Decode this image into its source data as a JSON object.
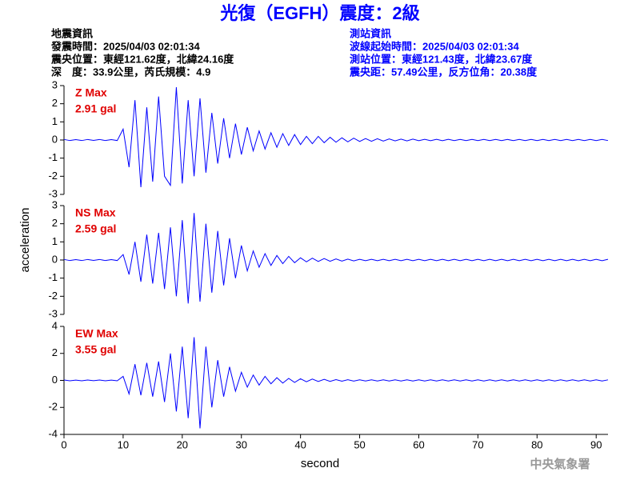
{
  "header": {
    "title": "光復（EGFH）震度：2級",
    "left": [
      "地震資訊",
      "發震時間：2025/04/03 02:01:34",
      "震央位置：東經121.62度，北緯24.16度",
      "深　度：33.9公里，芮氏規模：4.9"
    ],
    "right": [
      "測站資訊",
      "波線起始時間：2025/04/03 02:01:34",
      "測站位置：東經121.43度，北緯23.67度",
      "震央距：57.49公里，反方位角：20.38度"
    ]
  },
  "footer": "中央氣象署",
  "chart_data": [
    {
      "type": "line",
      "annotations": [
        "Z Max",
        "2.91 gal"
      ],
      "color": "#0000ff",
      "xlim": [
        0,
        92
      ],
      "ylim": [
        -3,
        3
      ],
      "yticks": [
        3,
        2,
        1,
        0,
        -1,
        -2,
        -3
      ],
      "x": [
        0,
        1,
        2,
        3,
        4,
        5,
        6,
        7,
        8,
        9,
        10,
        11,
        12,
        13,
        14,
        15,
        16,
        17,
        18,
        19,
        20,
        21,
        22,
        23,
        24,
        25,
        26,
        27,
        28,
        29,
        30,
        31,
        32,
        33,
        34,
        35,
        36,
        37,
        38,
        39,
        40,
        41,
        42,
        43,
        44,
        45,
        46,
        47,
        48,
        49,
        50,
        51,
        52,
        53,
        54,
        55,
        56,
        57,
        58,
        59,
        60,
        61,
        62,
        63,
        64,
        65,
        66,
        67,
        68,
        69,
        70,
        71,
        72,
        73,
        74,
        75,
        76,
        77,
        78,
        79,
        80,
        81,
        82,
        83,
        84,
        85,
        86,
        87,
        88,
        89,
        90,
        91,
        92
      ],
      "values": [
        0.03,
        -0.03,
        0.02,
        -0.03,
        0.03,
        -0.02,
        0.03,
        -0.03,
        0.02,
        -0.03,
        0.6,
        -1.5,
        2.2,
        -2.6,
        1.8,
        -2.3,
        2.4,
        -2.0,
        -2.5,
        2.91,
        -2.4,
        2.2,
        -2.0,
        2.3,
        -1.8,
        1.5,
        -1.3,
        1.2,
        -1.0,
        0.9,
        -0.8,
        0.7,
        -0.6,
        0.5,
        -0.5,
        0.4,
        -0.4,
        0.35,
        -0.3,
        0.3,
        -0.25,
        0.2,
        -0.2,
        0.2,
        -0.15,
        0.15,
        -0.12,
        0.12,
        -0.1,
        0.1,
        -0.08,
        0.08,
        -0.07,
        0.07,
        -0.06,
        0.06,
        -0.05,
        0.05,
        -0.05,
        0.05,
        -0.04,
        0.04,
        -0.04,
        0.04,
        -0.04,
        0.04,
        -0.03,
        0.03,
        -0.03,
        0.03,
        -0.03,
        0.03,
        -0.03,
        0.03,
        -0.03,
        0.03,
        -0.03,
        0.03,
        -0.03,
        0.03,
        -0.03,
        0.03,
        -0.03,
        0.03,
        -0.03,
        0.03,
        -0.03,
        0.03,
        -0.03,
        0.03,
        -0.03,
        0.03,
        -0.03
      ]
    },
    {
      "type": "line",
      "annotations": [
        "NS Max",
        "2.59 gal"
      ],
      "ylabel": "acceleration",
      "color": "#0000ff",
      "xlim": [
        0,
        92
      ],
      "ylim": [
        -3,
        3
      ],
      "yticks": [
        3,
        2,
        1,
        0,
        -1,
        -2,
        -3
      ],
      "x": [
        0,
        1,
        2,
        3,
        4,
        5,
        6,
        7,
        8,
        9,
        10,
        11,
        12,
        13,
        14,
        15,
        16,
        17,
        18,
        19,
        20,
        21,
        22,
        23,
        24,
        25,
        26,
        27,
        28,
        29,
        30,
        31,
        32,
        33,
        34,
        35,
        36,
        37,
        38,
        39,
        40,
        41,
        42,
        43,
        44,
        45,
        46,
        47,
        48,
        49,
        50,
        51,
        52,
        53,
        54,
        55,
        56,
        57,
        58,
        59,
        60,
        61,
        62,
        63,
        64,
        65,
        66,
        67,
        68,
        69,
        70,
        71,
        72,
        73,
        74,
        75,
        76,
        77,
        78,
        79,
        80,
        81,
        82,
        83,
        84,
        85,
        86,
        87,
        88,
        89,
        90,
        91,
        92
      ],
      "values": [
        0.03,
        -0.03,
        0.02,
        -0.03,
        0.03,
        -0.02,
        0.03,
        -0.03,
        0.02,
        -0.03,
        0.3,
        -0.8,
        1.0,
        -1.2,
        1.4,
        -1.3,
        1.5,
        -1.6,
        1.8,
        -2.0,
        2.2,
        -2.4,
        2.59,
        -2.3,
        2.0,
        -1.8,
        1.6,
        -1.4,
        1.2,
        -1.0,
        0.8,
        -0.6,
        0.5,
        -0.4,
        0.35,
        -0.3,
        0.25,
        -0.2,
        0.2,
        -0.15,
        0.12,
        -0.1,
        0.1,
        -0.08,
        0.08,
        -0.07,
        0.06,
        -0.06,
        0.05,
        -0.05,
        0.04,
        -0.04,
        0.04,
        -0.04,
        0.04,
        -0.04,
        0.04,
        -0.04,
        0.04,
        -0.04,
        0.04,
        -0.04,
        0.04,
        -0.04,
        0.04,
        -0.04,
        0.04,
        -0.04,
        0.04,
        -0.04,
        0.04,
        -0.04,
        0.04,
        -0.04,
        0.04,
        -0.04,
        0.04,
        -0.04,
        0.04,
        -0.04,
        0.04,
        -0.04,
        0.04,
        -0.04,
        0.04,
        -0.04,
        0.04,
        -0.04,
        0.04,
        -0.04,
        0.04,
        -0.04,
        0.04
      ]
    },
    {
      "type": "line",
      "annotations": [
        "EW Max",
        "3.55 gal"
      ],
      "xlabel": "second",
      "color": "#0000ff",
      "xlim": [
        0,
        92
      ],
      "ylim": [
        -4,
        4
      ],
      "yticks": [
        4,
        2,
        0,
        -2,
        -4
      ],
      "xticks": [
        0,
        10,
        20,
        30,
        40,
        50,
        60,
        70,
        80,
        90
      ],
      "x": [
        0,
        1,
        2,
        3,
        4,
        5,
        6,
        7,
        8,
        9,
        10,
        11,
        12,
        13,
        14,
        15,
        16,
        17,
        18,
        19,
        20,
        21,
        22,
        23,
        24,
        25,
        26,
        27,
        28,
        29,
        30,
        31,
        32,
        33,
        34,
        35,
        36,
        37,
        38,
        39,
        40,
        41,
        42,
        43,
        44,
        45,
        46,
        47,
        48,
        49,
        50,
        51,
        52,
        53,
        54,
        55,
        56,
        57,
        58,
        59,
        60,
        61,
        62,
        63,
        64,
        65,
        66,
        67,
        68,
        69,
        70,
        71,
        72,
        73,
        74,
        75,
        76,
        77,
        78,
        79,
        80,
        81,
        82,
        83,
        84,
        85,
        86,
        87,
        88,
        89,
        90,
        91,
        92
      ],
      "values": [
        0.03,
        -0.03,
        0.02,
        -0.03,
        0.03,
        -0.02,
        0.03,
        -0.03,
        0.02,
        -0.03,
        0.3,
        -1.0,
        1.2,
        -1.1,
        1.3,
        -1.2,
        1.4,
        -1.6,
        2.0,
        -2.3,
        2.5,
        -2.8,
        3.2,
        -3.55,
        2.5,
        -2.0,
        1.5,
        -1.2,
        1.0,
        -0.8,
        0.6,
        -0.5,
        0.4,
        -0.35,
        0.3,
        -0.25,
        0.2,
        -0.2,
        0.15,
        -0.15,
        0.12,
        -0.1,
        0.1,
        -0.08,
        0.08,
        -0.07,
        0.06,
        -0.06,
        0.05,
        -0.05,
        0.04,
        -0.04,
        0.04,
        -0.04,
        0.04,
        -0.04,
        0.04,
        -0.04,
        0.04,
        -0.04,
        0.04,
        -0.04,
        0.04,
        -0.04,
        0.04,
        -0.04,
        0.04,
        -0.04,
        0.04,
        -0.04,
        0.04,
        -0.04,
        0.04,
        -0.04,
        0.04,
        -0.04,
        0.04,
        -0.04,
        0.04,
        -0.04,
        0.04,
        -0.04,
        0.04,
        -0.04,
        0.04,
        -0.04,
        0.04,
        -0.04,
        0.04,
        -0.04,
        0.04,
        -0.04,
        0.04
      ]
    }
  ]
}
